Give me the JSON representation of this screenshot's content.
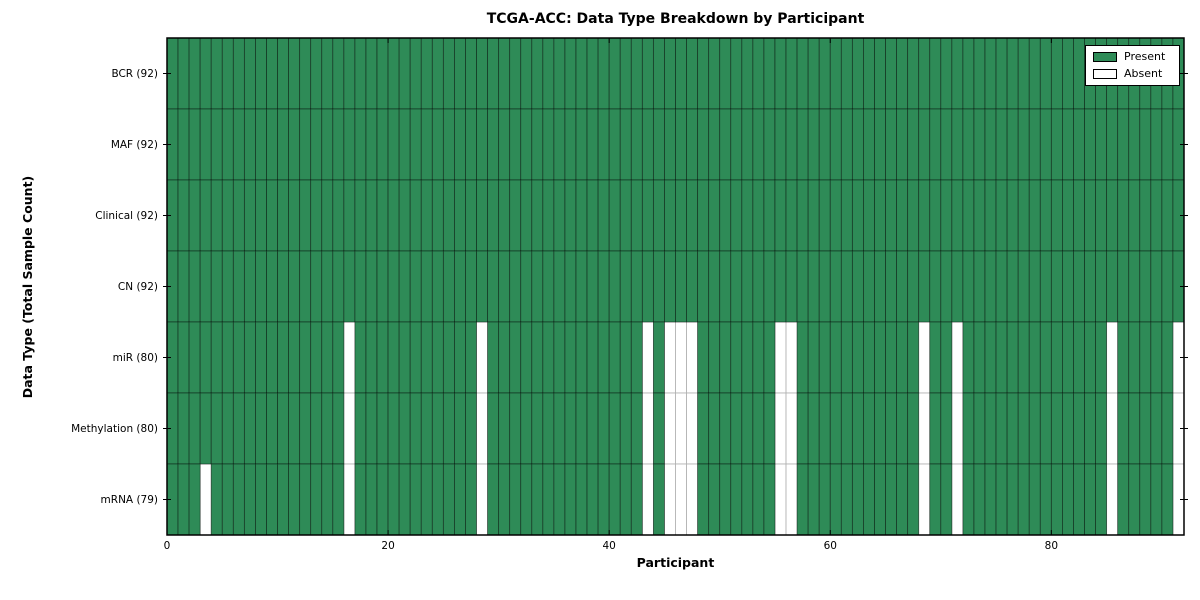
{
  "chart_data": {
    "type": "heatmap",
    "title": "TCGA-ACC: Data Type Breakdown by Participant",
    "xlabel": "Participant",
    "ylabel": "Data Type (Total Sample Count)",
    "n_participants": 92,
    "x_axis_range": [
      0,
      92
    ],
    "x_ticks": [
      0,
      20,
      40,
      60,
      80
    ],
    "legend_position": "upper right",
    "legend": [
      {
        "label": "Present",
        "state": "present",
        "color": "#2e8b57"
      },
      {
        "label": "Absent",
        "state": "absent",
        "color": "#ffffff"
      }
    ],
    "colors": {
      "present": "#2e8b57",
      "absent": "#ffffff",
      "present_cell_border": "rgba(0,0,0,0.5)",
      "absent_cell_border": "#b0b0b0",
      "axis_frame": "#000000",
      "background": "#ffffff"
    },
    "rows": [
      {
        "label": "BCR (92)",
        "data_type": "BCR",
        "present_count": 92,
        "absent_participants": []
      },
      {
        "label": "MAF (92)",
        "data_type": "MAF",
        "present_count": 92,
        "absent_participants": []
      },
      {
        "label": "Clinical (92)",
        "data_type": "Clinical",
        "present_count": 92,
        "absent_participants": []
      },
      {
        "label": "CN (92)",
        "data_type": "CN",
        "present_count": 92,
        "absent_participants": []
      },
      {
        "label": "miR (80)",
        "data_type": "miR",
        "present_count": 80,
        "absent_participants": [
          16,
          28,
          43,
          45,
          46,
          47,
          55,
          56,
          68,
          71,
          85,
          91
        ]
      },
      {
        "label": "Methylation (80)",
        "data_type": "Methylation",
        "present_count": 80,
        "absent_participants": [
          16,
          28,
          43,
          45,
          46,
          47,
          55,
          56,
          68,
          71,
          85,
          91
        ]
      },
      {
        "label": "mRNA (79)",
        "data_type": "mRNA",
        "present_count": 79,
        "absent_participants": [
          3,
          16,
          28,
          43,
          45,
          46,
          47,
          55,
          56,
          68,
          71,
          85,
          91
        ]
      }
    ]
  }
}
